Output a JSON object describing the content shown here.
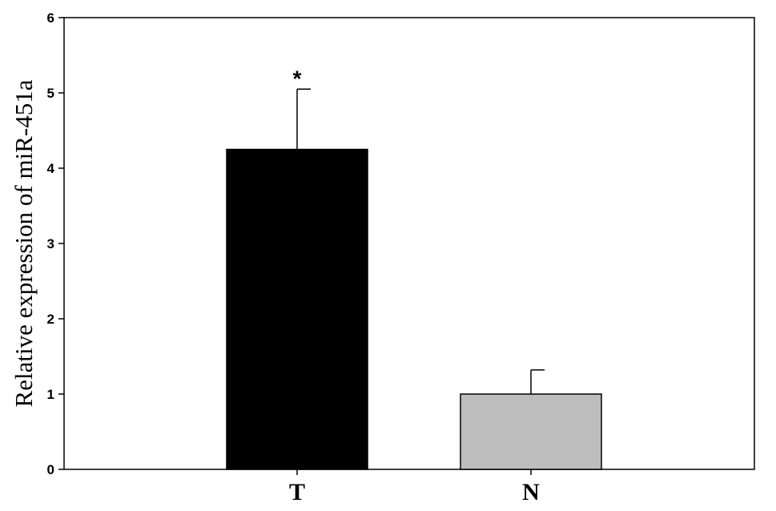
{
  "chart_data": {
    "type": "bar",
    "categories": [
      "T",
      "N"
    ],
    "values": [
      4.25,
      1.0
    ],
    "error_upper": [
      5.05,
      1.32
    ],
    "bar_colors": [
      "#000000",
      "#bdbdbd"
    ],
    "significance": [
      "*",
      ""
    ],
    "title": "",
    "xlabel": "",
    "ylabel": "Relative expression of miR-451a",
    "ylim": [
      0,
      6
    ],
    "yticks": [
      "0",
      "1",
      "2",
      "3",
      "4",
      "5",
      "6"
    ],
    "grid": false,
    "legend": "none"
  }
}
